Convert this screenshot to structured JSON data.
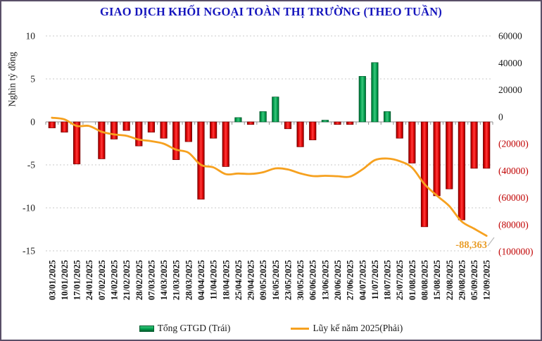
{
  "title": "GIAO DỊCH KHỐI NGOẠI TOÀN THỊ TRƯỜNG (THEO TUẦN)",
  "y_left": {
    "title": "Nghìn tỷ đồng",
    "ticks": [
      10,
      5,
      0,
      -5,
      -10,
      -15
    ]
  },
  "y_right": {
    "ticks": [
      "60000",
      "40000",
      "20000",
      "0",
      "(20000)",
      "(40000)",
      "(60000)",
      "(80000)",
      "(100000)"
    ]
  },
  "legend": [
    {
      "label": "Tổng GTGD (Trái)",
      "swatch": "bar"
    },
    {
      "label": "Lũy kế năm 2025(Phải)",
      "swatch": "line"
    }
  ],
  "annotation": {
    "text": "-88,363"
  },
  "colors": {
    "title": "#1515bd",
    "bar_negative": "#dd0000",
    "bar_negative_dark": "#7a0000",
    "bar_negative_light": "#ff3b3b",
    "bar_positive": "#00a14e",
    "bar_positive_dark": "#015c2d",
    "bar_positive_light": "#3cc47c",
    "line": "#f6a11f",
    "annotation": "#e99d28",
    "axis_negative_label": "#c00000",
    "gridline": "#c9c9c9",
    "axis": "#8c8c8c",
    "frame": "#5a4f68",
    "text": "#1a1a1a"
  },
  "chart_data": {
    "type": "combo (bar + line, dual axis)",
    "categories": [
      "03/01/2025",
      "10/01/2025",
      "17/01/2025",
      "24/01/2025",
      "07/02/2025",
      "14/02/2025",
      "21/02/2025",
      "28/02/2025",
      "07/03/2025",
      "14/03/2025",
      "21/03/2025",
      "28/03/2025",
      "04/04/2025",
      "11/04/2025",
      "18/04/2025",
      "25/04/2025",
      "29/04/2025",
      "09/05/2025",
      "16/05/2025",
      "23/05/2025",
      "30/05/2025",
      "06/06/2025",
      "13/06/2025",
      "20/06/2025",
      "27/06/2025",
      "04/07/2025",
      "11/07/2025",
      "18/07/2025",
      "25/07/2025",
      "01/08/2025",
      "08/08/2025",
      "15/08/2025",
      "22/08/2025",
      "29/08/2025",
      "05/09/2025",
      "12/09/2025"
    ],
    "series": [
      {
        "name": "Tổng GTGD (Trái)",
        "type": "bar",
        "axis": "left",
        "unit": "nghìn tỷ đồng",
        "values": [
          -0.7,
          -1.2,
          -4.9,
          0,
          -4.3,
          -2.0,
          -1.0,
          -2.8,
          -1.2,
          -1.9,
          -4.4,
          -2.3,
          -9.0,
          -1.9,
          -5.2,
          0.5,
          -0.3,
          1.2,
          2.9,
          -0.8,
          -2.9,
          -2.1,
          0.2,
          -0.3,
          -0.3,
          5.3,
          6.9,
          1.2,
          -1.9,
          -4.8,
          -12.2,
          -8.6,
          -7.8,
          -11.4,
          -5.4,
          -5.4
        ]
      },
      {
        "name": "Lũy kế năm 2025(Phải)",
        "type": "line",
        "axis": "right",
        "unit": "tỷ đồng",
        "values": [
          -700,
          -1900,
          -6800,
          -6800,
          -11100,
          -13100,
          -14100,
          -16900,
          -18100,
          -20000,
          -24400,
          -26700,
          -35700,
          -37500,
          -42600,
          -42100,
          -42400,
          -41200,
          -38300,
          -39100,
          -42000,
          -44000,
          -43800,
          -44100,
          -44400,
          -39100,
          -32200,
          -31000,
          -32900,
          -37700,
          -49900,
          -58500,
          -66300,
          -77700,
          -83000,
          -88363
        ]
      }
    ],
    "left_axis_range": [
      -15,
      10
    ],
    "right_axis_range": [
      -100000,
      60000
    ],
    "grid": "horizontal dotted at left-axis ticks",
    "legend_position": "bottom",
    "annotations": [
      {
        "text": "-88,363",
        "series": "Lũy kế năm 2025(Phải)",
        "at": "12/09/2025"
      }
    ]
  }
}
